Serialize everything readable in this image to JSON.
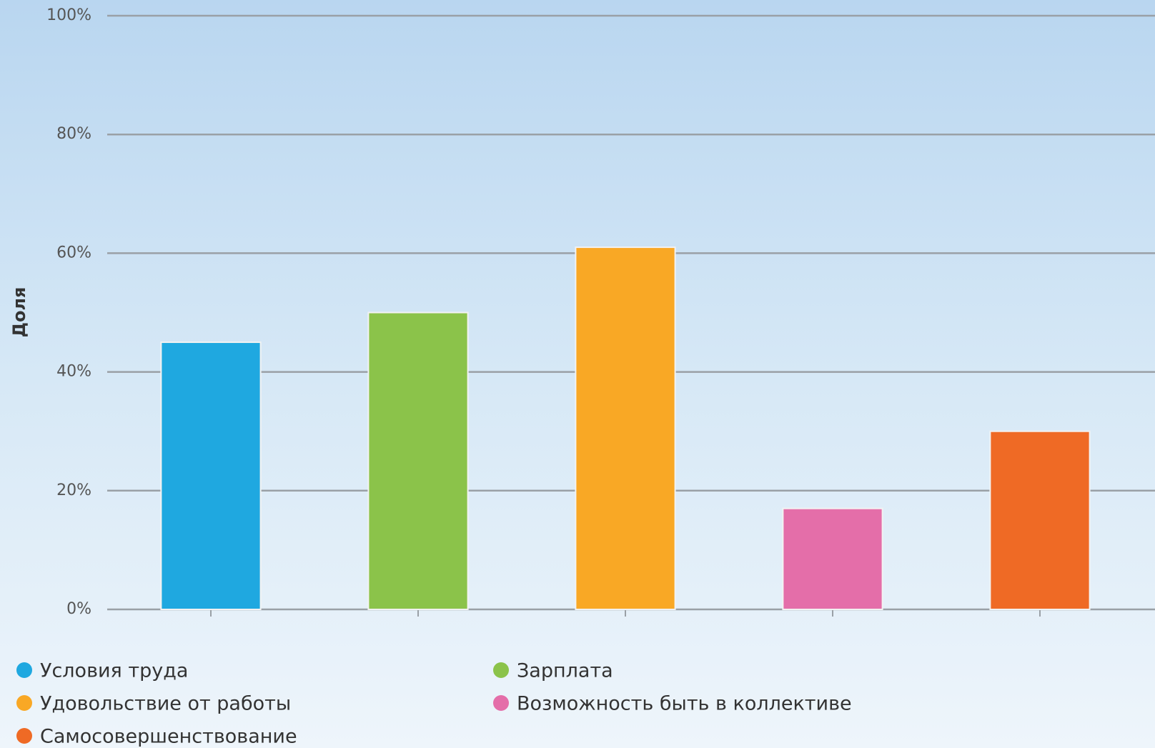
{
  "chart_data": {
    "type": "bar",
    "y_label": "Доля",
    "ylim": [
      0,
      100
    ],
    "yticks": [
      {
        "value": 0,
        "label": "0%"
      },
      {
        "value": 20,
        "label": "20%"
      },
      {
        "value": 40,
        "label": "40%"
      },
      {
        "value": 60,
        "label": "60%"
      },
      {
        "value": 80,
        "label": "80%"
      },
      {
        "value": 100,
        "label": "100%"
      }
    ],
    "grid": true,
    "series": [
      {
        "name": "Условия труда",
        "color": "#1fa8e0",
        "values": [
          45
        ]
      },
      {
        "name": "Зарплата",
        "color": "#8bc34a",
        "values": [
          50
        ]
      },
      {
        "name": "Удовольствие от работы",
        "color": "#f9a825",
        "values": [
          61
        ]
      },
      {
        "name": "Возможность быть в коллективе",
        "color": "#e46ea9",
        "values": [
          17
        ]
      },
      {
        "name": "Самосовершенствование",
        "color": "#ef6a25",
        "values": [
          30
        ]
      }
    ]
  }
}
